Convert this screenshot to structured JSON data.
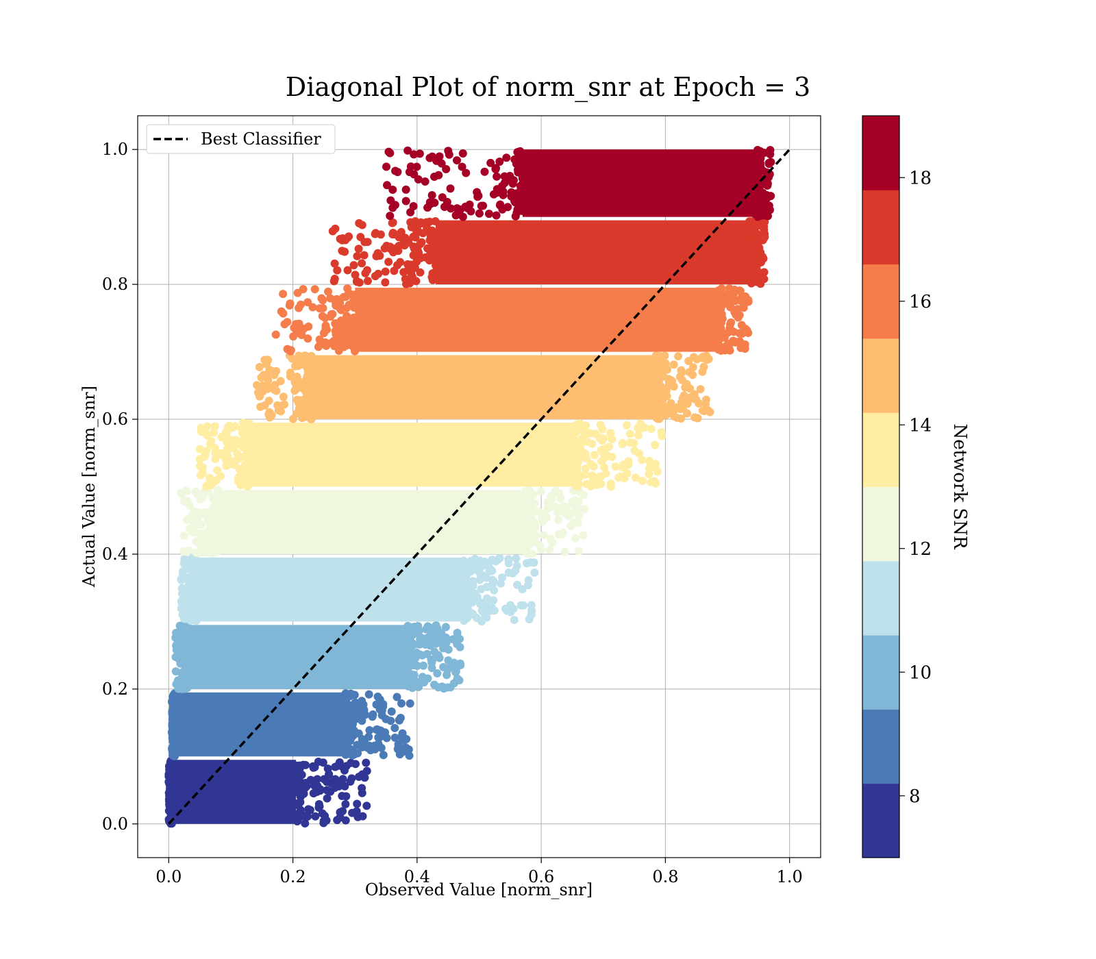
{
  "chart_data": {
    "type": "scatter",
    "title": "Diagonal Plot of norm_snr at Epoch = 3",
    "xlabel": "Observed Value [norm_snr]",
    "ylabel": "Actual Value [norm_snr]",
    "xlim": [
      -0.05,
      1.05
    ],
    "ylim": [
      -0.05,
      1.05
    ],
    "xticks": [
      0.0,
      0.2,
      0.4,
      0.6,
      0.8,
      1.0
    ],
    "yticks": [
      0.0,
      0.2,
      0.4,
      0.6,
      0.8,
      1.0
    ],
    "xtick_labels": [
      "0.0",
      "0.2",
      "0.4",
      "0.6",
      "0.8",
      "1.0"
    ],
    "ytick_labels": [
      "0.0",
      "0.2",
      "0.4",
      "0.6",
      "0.8",
      "1.0"
    ],
    "grid": true,
    "legend": {
      "placement": "upper-left",
      "entries": [
        "Best Classifier"
      ]
    },
    "diagonal_line": {
      "name": "Best Classifier",
      "x": [
        0.0,
        1.0
      ],
      "y": [
        0.0,
        1.0
      ],
      "style": "dashed",
      "color": "#000000"
    },
    "colorbar": {
      "label": "Network SNR",
      "min": 7,
      "max": 19,
      "ticks": [
        8,
        10,
        12,
        14,
        16,
        18
      ],
      "tick_labels": [
        "8",
        "10",
        "12",
        "14",
        "16",
        "18"
      ],
      "colors": [
        "#313695",
        "#4575b4",
        "#74add1",
        "#abd9e9",
        "#e0f3f8",
        "#ffffbf",
        "#fee090",
        "#fdae61",
        "#f46d43",
        "#d73027",
        "#a50026"
      ],
      "band_colors": [
        "#313695",
        "#4a7bb7",
        "#80b6d6",
        "#bfe1ec",
        "#eff8de",
        "#feeda3",
        "#fdbe71",
        "#f47d4b",
        "#da3a2b",
        "#a50026"
      ]
    },
    "bands": [
      {
        "y_range": [
          0.0,
          0.095
        ],
        "x_core": [
          0.005,
          0.205
        ],
        "x_spread": [
          0.0,
          0.32
        ]
      },
      {
        "y_range": [
          0.1,
          0.195
        ],
        "x_core": [
          0.01,
          0.285
        ],
        "x_spread": [
          0.005,
          0.39
        ]
      },
      {
        "y_range": [
          0.2,
          0.295
        ],
        "x_core": [
          0.03,
          0.385
        ],
        "x_spread": [
          0.01,
          0.47
        ]
      },
      {
        "y_range": [
          0.3,
          0.395
        ],
        "x_core": [
          0.045,
          0.475
        ],
        "x_spread": [
          0.02,
          0.59
        ]
      },
      {
        "y_range": [
          0.4,
          0.495
        ],
        "x_core": [
          0.08,
          0.575
        ],
        "x_spread": [
          0.02,
          0.67
        ]
      },
      {
        "y_range": [
          0.5,
          0.595
        ],
        "x_core": [
          0.13,
          0.655
        ],
        "x_spread": [
          0.05,
          0.795
        ]
      },
      {
        "y_range": [
          0.6,
          0.695
        ],
        "x_core": [
          0.23,
          0.785
        ],
        "x_spread": [
          0.14,
          0.875
        ]
      },
      {
        "y_range": [
          0.7,
          0.795
        ],
        "x_core": [
          0.3,
          0.885
        ],
        "x_spread": [
          0.17,
          0.935
        ]
      },
      {
        "y_range": [
          0.8,
          0.895
        ],
        "x_core": [
          0.43,
          0.935
        ],
        "x_spread": [
          0.26,
          0.96
        ]
      },
      {
        "y_range": [
          0.9,
          1.0
        ],
        "x_core": [
          0.57,
          0.945
        ],
        "x_spread": [
          0.35,
          0.97
        ]
      }
    ]
  }
}
